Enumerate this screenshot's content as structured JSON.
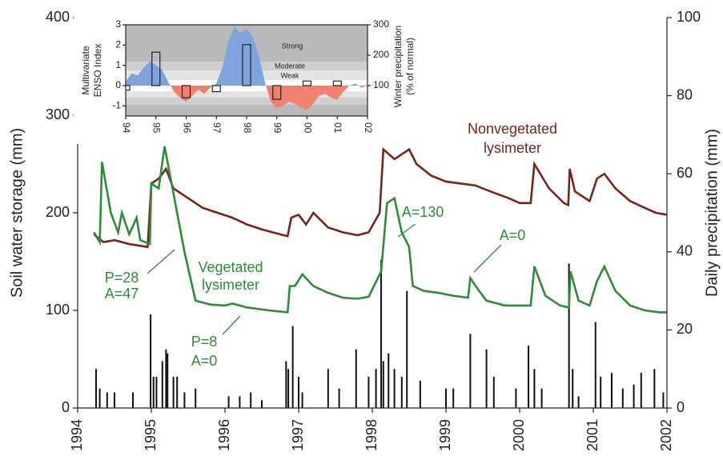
{
  "chart_data": [
    {
      "type": "line",
      "ylabel": "Soil water storage (mm)",
      "y2label": "Daily precipitation (mm)",
      "xlim": [
        1994,
        2002
      ],
      "xticks": [
        1994,
        1995,
        1996,
        1997,
        1998,
        1999,
        2000,
        2001,
        2002
      ],
      "ylim": [
        0,
        400
      ],
      "yticks": [
        0,
        100,
        200,
        300,
        400
      ],
      "y2lim": [
        0,
        100
      ],
      "y2ticks": [
        0,
        20,
        40,
        60,
        80,
        100
      ],
      "series": [
        {
          "type": "line",
          "color": "#7a2418",
          "x": [
            1994.22,
            1994.35,
            1994.5,
            1994.7,
            1994.95,
            1995.0,
            1995.1,
            1995.2,
            1995.3,
            1995.5,
            1995.7,
            1995.9,
            1996.1,
            1996.3,
            1996.5,
            1996.75,
            1996.85,
            1996.9,
            1997.0,
            1997.1,
            1997.2,
            1997.4,
            1997.6,
            1997.8,
            1997.95,
            1998.1,
            1998.15,
            1998.3,
            1998.5,
            1998.6,
            1998.8,
            1999.0,
            1999.2,
            1999.4,
            1999.6,
            1999.85,
            2000.0,
            2000.15,
            2000.2,
            2000.4,
            2000.6,
            2000.66,
            2000.68,
            2000.75,
            2000.95,
            2001.05,
            2001.15,
            2001.3,
            2001.5,
            2001.7,
            2001.85,
            2002.0
          ],
          "values": [
            178,
            170,
            172,
            168,
            165,
            230,
            235,
            245,
            225,
            215,
            205,
            200,
            195,
            188,
            183,
            178,
            176,
            195,
            198,
            188,
            200,
            185,
            180,
            177,
            180,
            200,
            265,
            255,
            265,
            250,
            238,
            232,
            230,
            228,
            222,
            215,
            210,
            210,
            250,
            225,
            210,
            208,
            245,
            222,
            212,
            235,
            240,
            225,
            212,
            205,
            200,
            198
          ]
        },
        {
          "type": "line",
          "color": "#2e8b3a",
          "x": [
            1994.22,
            1994.3,
            1994.33,
            1994.45,
            1994.55,
            1994.6,
            1994.7,
            1994.8,
            1994.85,
            1994.98,
            1995.0,
            1995.1,
            1995.18,
            1995.3,
            1995.45,
            1995.6,
            1995.8,
            1996.0,
            1996.1,
            1996.3,
            1996.6,
            1996.85,
            1996.88,
            1996.95,
            1997.05,
            1997.2,
            1997.4,
            1997.6,
            1997.8,
            1997.95,
            1998.12,
            1998.2,
            1998.3,
            1998.4,
            1998.5,
            1998.55,
            1998.7,
            1998.9,
            1999.1,
            1999.3,
            1999.33,
            1999.45,
            1999.55,
            1999.8,
            2000.0,
            2000.15,
            2000.2,
            2000.35,
            2000.55,
            2000.67,
            2000.69,
            2000.8,
            2000.95,
            2001.05,
            2001.15,
            2001.3,
            2001.5,
            2001.7,
            2001.9,
            2002.0
          ],
          "values": [
            180,
            170,
            252,
            200,
            180,
            200,
            178,
            195,
            172,
            168,
            230,
            225,
            268,
            220,
            160,
            110,
            106,
            105,
            107,
            103,
            100,
            98,
            125,
            125,
            137,
            125,
            118,
            113,
            112,
            114,
            140,
            210,
            215,
            180,
            165,
            125,
            120,
            118,
            115,
            113,
            133,
            120,
            110,
            105,
            105,
            105,
            145,
            115,
            105,
            103,
            140,
            110,
            105,
            130,
            145,
            120,
            105,
            100,
            98,
            98
          ]
        },
        {
          "type": "bar",
          "axis": "y2",
          "color": "#111",
          "x": [
            1994.25,
            1994.3,
            1994.4,
            1994.5,
            1994.75,
            1994.99,
            1995.03,
            1995.07,
            1995.15,
            1995.2,
            1995.22,
            1995.3,
            1995.35,
            1995.45,
            1995.6,
            1996.05,
            1996.2,
            1996.35,
            1996.5,
            1996.83,
            1996.86,
            1996.92,
            1997.0,
            1997.05,
            1997.4,
            1997.55,
            1997.78,
            1997.95,
            1998.05,
            1998.12,
            1998.15,
            1998.22,
            1998.3,
            1998.4,
            1998.47,
            1998.65,
            1999.0,
            1999.1,
            1999.33,
            1999.55,
            1999.65,
            1999.95,
            2000.12,
            2000.2,
            2000.3,
            2000.67,
            2000.72,
            2000.8,
            2001.03,
            2001.1,
            2001.25,
            2001.4,
            2001.55,
            2001.65,
            2001.83,
            2001.95
          ],
          "values": [
            10,
            5,
            4,
            4,
            4,
            24,
            8,
            8,
            12,
            15,
            14,
            8,
            8,
            4,
            5,
            3,
            3,
            4,
            2,
            12,
            10,
            21,
            8,
            4,
            10,
            5,
            15,
            8,
            10,
            38,
            12,
            14,
            10,
            8,
            30,
            7,
            5,
            5,
            19,
            15,
            8,
            5,
            16,
            10,
            5,
            37,
            10,
            3,
            22,
            8,
            9,
            5,
            6,
            9,
            10,
            4
          ]
        }
      ],
      "annotations": [
        "Nonvegetated",
        "lysimeter",
        "Vegetated",
        "lysimeter",
        "A=130",
        "A=0",
        "P=28",
        "A=47",
        "P=8",
        "A=0"
      ]
    },
    {
      "type": "area",
      "ylabel": [
        "Multivariate",
        "ENSO Index"
      ],
      "y2label": [
        "Winter precipitation",
        "(% of normal)"
      ],
      "xlim": [
        1994,
        2002
      ],
      "xticks": [
        {
          "value": 1994,
          "label": "94"
        },
        {
          "value": 1995,
          "label": "95"
        },
        {
          "value": 1996,
          "label": "96"
        },
        {
          "value": 1997,
          "label": "97"
        },
        {
          "value": 1998,
          "label": "98"
        },
        {
          "value": 1999,
          "label": "99"
        },
        {
          "value": 2000,
          "label": "00"
        },
        {
          "value": 2001,
          "label": "01"
        },
        {
          "value": 2002,
          "label": "02"
        }
      ],
      "ylim": [
        -1.5,
        3
      ],
      "yticks": [
        -1,
        0,
        1,
        2,
        3
      ],
      "y2lim": [
        0,
        300
      ],
      "y2ticks": [
        100,
        200,
        300
      ],
      "series": [
        {
          "type": "area",
          "color": "#7fa4dc",
          "negative_color": "#f08070",
          "x": [
            1994.0,
            1994.2,
            1994.4,
            1994.6,
            1994.8,
            1995.0,
            1995.2,
            1995.4,
            1995.6,
            1995.8,
            1996.0,
            1996.2,
            1996.4,
            1996.6,
            1996.8,
            1997.0,
            1997.2,
            1997.4,
            1997.6,
            1997.8,
            1998.0,
            1998.2,
            1998.4,
            1998.6,
            1998.8,
            1999.0,
            1999.2,
            1999.4,
            1999.6,
            1999.8,
            2000.0,
            2000.2,
            2000.4,
            2000.6,
            2000.8,
            2001.0,
            2001.2,
            2001.4,
            2001.6,
            2001.8,
            2002.0
          ],
          "values": [
            0.2,
            0.6,
            0.5,
            0.9,
            1.2,
            1.0,
            0.8,
            0.2,
            -0.3,
            -0.6,
            -0.8,
            -0.5,
            -0.2,
            -0.4,
            -0.1,
            0.1,
            0.9,
            2.2,
            2.9,
            2.6,
            2.8,
            2.4,
            1.5,
            0.2,
            -0.8,
            -1.1,
            -1.0,
            -0.8,
            -0.9,
            -1.1,
            -1.2,
            -0.9,
            -0.5,
            -0.4,
            -0.6,
            -0.7,
            -0.3,
            0.0,
            0.1,
            -0.1,
            0.0
          ]
        },
        {
          "type": "bar",
          "axis": "y2",
          "color": "#222",
          "x": [
            1994.0,
            1995.0,
            1996.0,
            1997.0,
            1998.0,
            1999.0,
            2000.0,
            2001.0
          ],
          "values": [
            85,
            210,
            60,
            80,
            235,
            55,
            115,
            115
          ]
        }
      ],
      "annotations": [
        "Strong",
        "Moderate",
        "Weak"
      ]
    }
  ]
}
